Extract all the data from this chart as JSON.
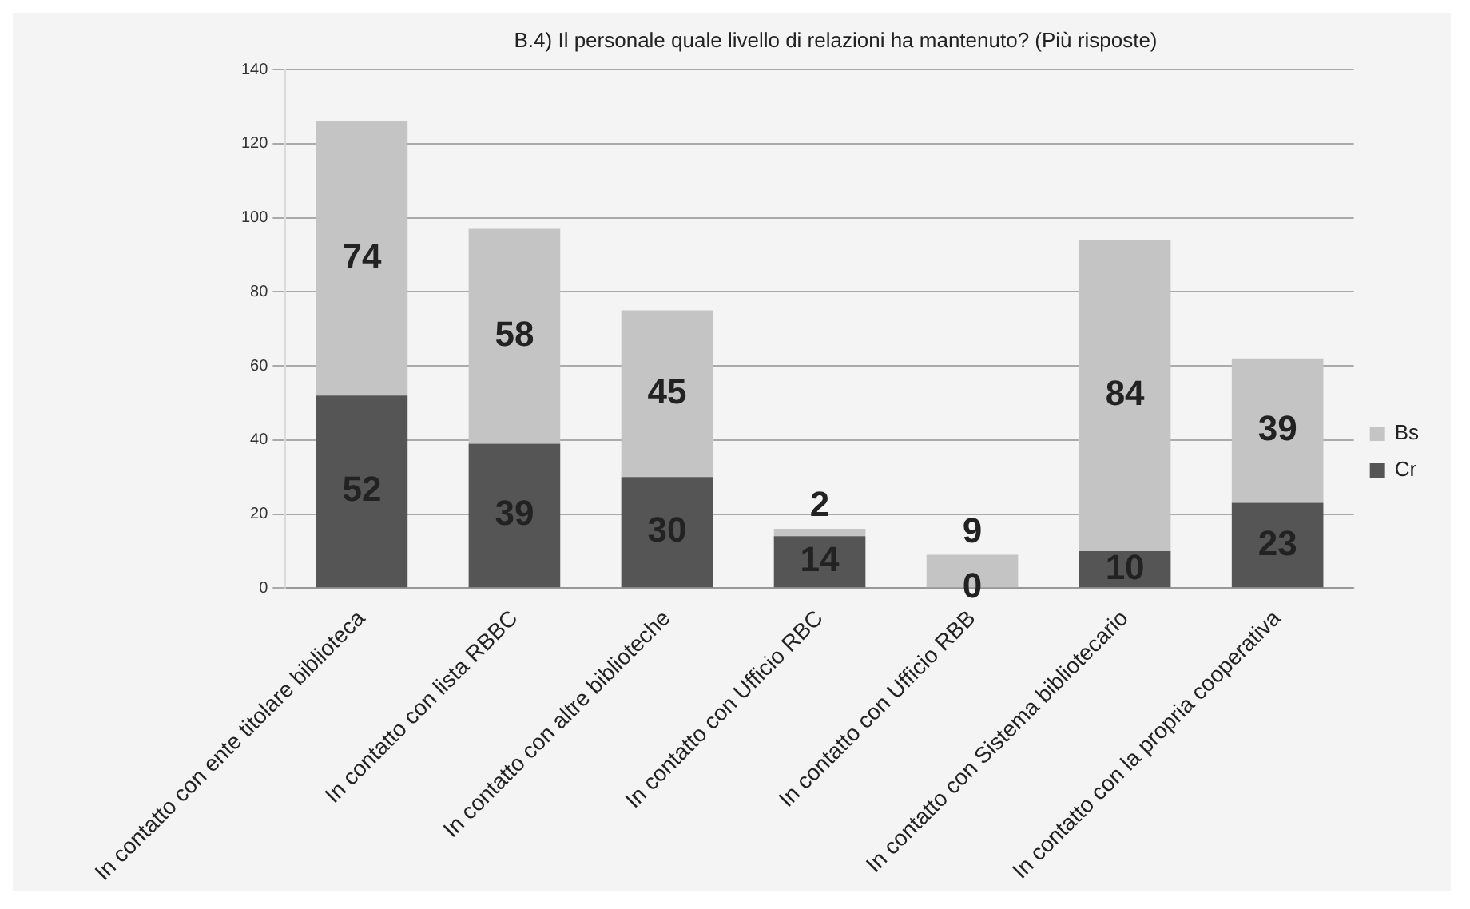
{
  "chart_data": {
    "type": "bar",
    "title": "B.4) Il personale quale livello di relazioni ha mantenuto? (Più risposte)",
    "categories": [
      "In contatto con ente titolare biblioteca",
      "In contatto con lista RBBC",
      "In contatto con altre biblioteche",
      "In contatto con Ufficio RBC",
      "In contatto con Ufficio RBB",
      "In contatto con Sistema bibliotecario",
      "In contatto con la propria cooperativa"
    ],
    "stacked": true,
    "series": [
      {
        "name": "Cr",
        "color": "#555555",
        "values": [
          52,
          39,
          30,
          14,
          0,
          10,
          23
        ]
      },
      {
        "name": "Bs",
        "color": "#c4c4c4",
        "values": [
          74,
          58,
          45,
          2,
          9,
          84,
          39
        ]
      }
    ],
    "ylim": [
      0,
      140
    ],
    "yticks": [
      0,
      20,
      40,
      60,
      80,
      100,
      120,
      140
    ],
    "grid": "y",
    "legend": "right",
    "data_labels": true
  }
}
